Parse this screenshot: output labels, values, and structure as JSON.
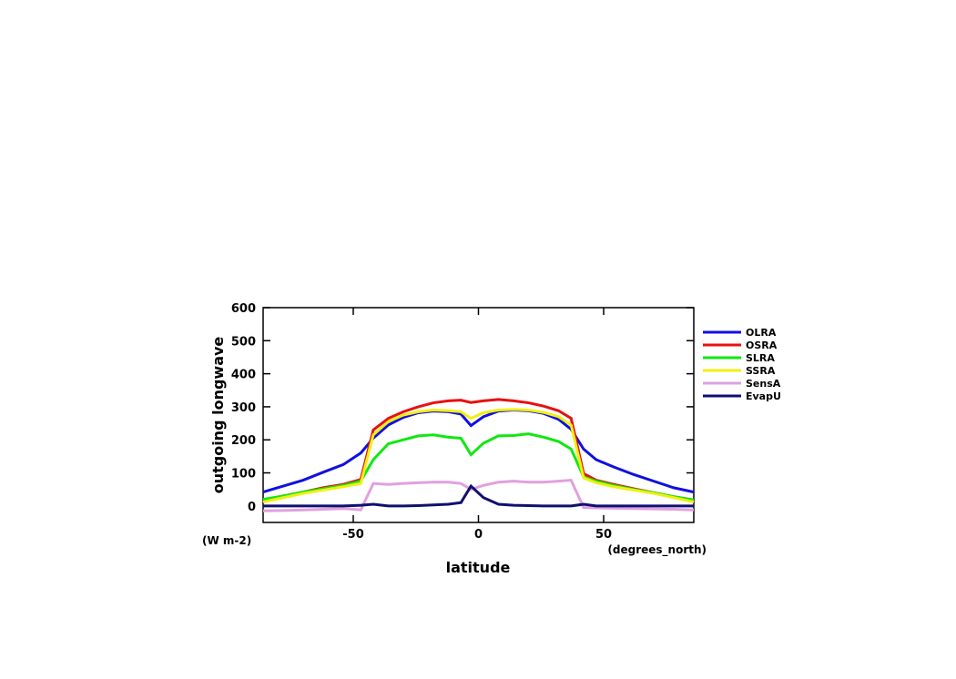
{
  "chart_data": {
    "type": "line",
    "y_label": "outgoing longwave",
    "y_units": "(W m-2)",
    "x_label": "latitude",
    "x_units": "(degrees_north)",
    "x": [
      -86,
      -78,
      -70,
      -62,
      -54,
      -47,
      -42,
      -36,
      -30,
      -24,
      -18,
      -12,
      -7,
      -3,
      2,
      8,
      14,
      20,
      26,
      32,
      37,
      42,
      47,
      54,
      62,
      70,
      78,
      86
    ],
    "xlim": [
      -86,
      86
    ],
    "xticks": [
      -50,
      0,
      50
    ],
    "ylim": [
      -50,
      600
    ],
    "yticks": [
      0,
      100,
      200,
      300,
      400,
      500,
      600
    ],
    "legend": "right",
    "series": [
      {
        "name": "OLRA",
        "color": "#1010e0",
        "values": [
          42,
          60,
          78,
          102,
          125,
          160,
          205,
          245,
          268,
          282,
          287,
          285,
          278,
          243,
          270,
          287,
          290,
          288,
          280,
          262,
          232,
          172,
          140,
          118,
          95,
          75,
          55,
          42
        ]
      },
      {
        "name": "OSRA",
        "color": "#e81010",
        "values": [
          18,
          30,
          42,
          55,
          65,
          80,
          230,
          265,
          285,
          300,
          312,
          318,
          320,
          313,
          318,
          322,
          318,
          312,
          302,
          288,
          265,
          98,
          78,
          65,
          52,
          40,
          28,
          18
        ]
      },
      {
        "name": "SLRA",
        "color": "#10e810",
        "values": [
          20,
          30,
          42,
          52,
          62,
          75,
          140,
          188,
          200,
          212,
          215,
          208,
          205,
          155,
          190,
          212,
          213,
          218,
          208,
          195,
          172,
          88,
          75,
          62,
          50,
          40,
          28,
          18
        ]
      },
      {
        "name": "SSRA",
        "color": "#f0f010",
        "values": [
          12,
          25,
          38,
          48,
          58,
          68,
          215,
          255,
          275,
          285,
          290,
          288,
          285,
          265,
          282,
          290,
          292,
          290,
          283,
          270,
          245,
          85,
          70,
          58,
          48,
          38,
          25,
          12
        ]
      },
      {
        "name": "SensA",
        "color": "#e0a0e0",
        "values": [
          -15,
          -14,
          -12,
          -10,
          -8,
          -12,
          68,
          65,
          68,
          70,
          72,
          72,
          68,
          50,
          62,
          72,
          75,
          72,
          72,
          75,
          78,
          -5,
          -6,
          -7,
          -8,
          -9,
          -10,
          -12
        ]
      },
      {
        "name": "EvapU",
        "color": "#101070",
        "values": [
          0,
          0,
          0,
          0,
          0,
          2,
          5,
          0,
          0,
          1,
          3,
          5,
          10,
          60,
          25,
          5,
          2,
          1,
          0,
          0,
          0,
          5,
          0,
          0,
          0,
          0,
          0,
          0
        ]
      }
    ]
  }
}
